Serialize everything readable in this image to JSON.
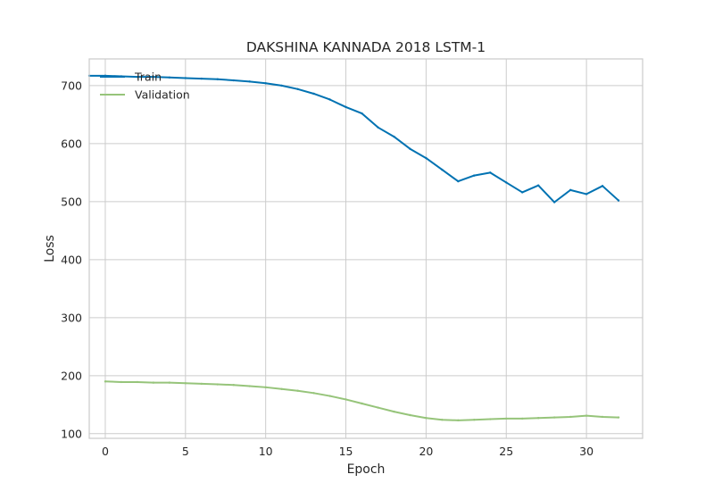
{
  "chart_data": {
    "type": "line",
    "title": "DAKSHINA KANNADA 2018 LSTM-1",
    "xlabel": "Epoch",
    "ylabel": "Loss",
    "xlim": [
      -1,
      33.5
    ],
    "ylim": [
      92,
      746
    ],
    "xticks": [
      0,
      5,
      10,
      15,
      20,
      25,
      30
    ],
    "yticks": [
      100,
      200,
      300,
      400,
      500,
      600,
      700
    ],
    "grid": true,
    "legend_position": "top-left",
    "series": [
      {
        "name": "Train",
        "color": "#0072b2",
        "x": [
          -1,
          0,
          1,
          2,
          3,
          4,
          5,
          6,
          7,
          8,
          9,
          10,
          11,
          12,
          13,
          14,
          15,
          16,
          17,
          18,
          19,
          20,
          21,
          22,
          23,
          24,
          25,
          26,
          27,
          28,
          29,
          30,
          31,
          32
        ],
        "y": [
          717,
          717,
          716,
          715,
          715,
          714,
          713,
          712,
          711,
          709,
          707,
          704,
          700,
          694,
          686,
          676,
          663,
          652,
          628,
          612,
          591,
          575,
          555,
          535,
          545,
          550,
          533,
          516,
          528,
          499,
          520,
          513,
          527,
          502
        ]
      },
      {
        "name": "Validation",
        "color": "#96c47a",
        "x": [
          0,
          1,
          2,
          3,
          4,
          5,
          6,
          7,
          8,
          9,
          10,
          11,
          12,
          13,
          14,
          15,
          16,
          17,
          18,
          19,
          20,
          21,
          22,
          23,
          24,
          25,
          26,
          27,
          28,
          29,
          30,
          31,
          32
        ],
        "y": [
          190,
          189,
          189,
          188,
          188,
          187,
          186,
          185,
          184,
          182,
          180,
          177,
          174,
          170,
          165,
          159,
          152,
          145,
          138,
          132,
          127,
          124,
          123,
          124,
          125,
          126,
          126,
          127,
          128,
          129,
          131,
          129,
          128
        ]
      }
    ]
  }
}
